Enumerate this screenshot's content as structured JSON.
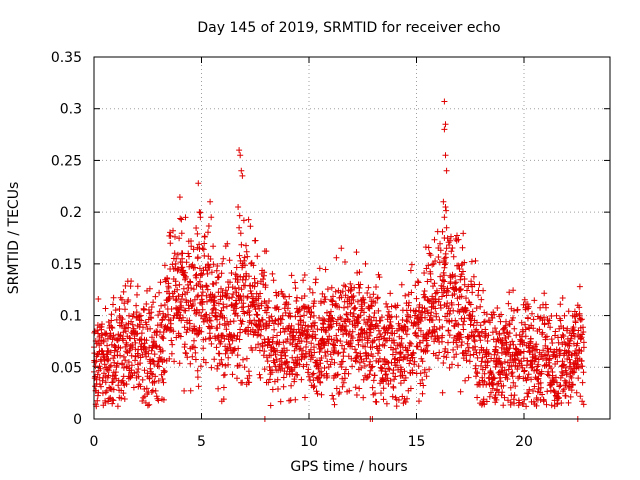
{
  "chart_data": {
    "type": "scatter",
    "title": "Day 145 of 2019, SRMTID for receiver echo",
    "xlabel": "GPS time / hours",
    "ylabel": "SRMTID / TECUs",
    "xlim": [
      0,
      24
    ],
    "ylim": [
      0,
      0.35
    ],
    "xticks": [
      0,
      5,
      10,
      15,
      20
    ],
    "xtick_labels": [
      "0",
      "5",
      "10",
      "15",
      "20"
    ],
    "yticks": [
      0,
      0.05,
      0.1,
      0.15,
      0.2,
      0.25,
      0.3,
      0.35
    ],
    "ytick_labels": [
      "0",
      "0.05",
      "0.1",
      "0.15",
      "0.2",
      "0.25",
      "0.3",
      "0.35"
    ],
    "grid": true,
    "marker": "plus",
    "color": "#e00000",
    "series": [
      {
        "name": "SRMTID",
        "trend": [
          [
            0.0,
            0.06
          ],
          [
            0.5,
            0.058
          ],
          [
            1.0,
            0.055
          ],
          [
            1.5,
            0.068
          ],
          [
            2.0,
            0.075
          ],
          [
            2.5,
            0.07
          ],
          [
            3.0,
            0.062
          ],
          [
            3.5,
            0.11
          ],
          [
            4.0,
            0.12
          ],
          [
            4.5,
            0.105
          ],
          [
            5.0,
            0.12
          ],
          [
            5.5,
            0.11
          ],
          [
            6.0,
            0.09
          ],
          [
            6.5,
            0.11
          ],
          [
            7.0,
            0.115
          ],
          [
            7.5,
            0.105
          ],
          [
            8.0,
            0.09
          ],
          [
            8.5,
            0.08
          ],
          [
            9.0,
            0.075
          ],
          [
            9.5,
            0.075
          ],
          [
            10.0,
            0.07
          ],
          [
            10.5,
            0.075
          ],
          [
            11.0,
            0.08
          ],
          [
            11.5,
            0.085
          ],
          [
            12.0,
            0.09
          ],
          [
            12.5,
            0.085
          ],
          [
            13.0,
            0.075
          ],
          [
            13.5,
            0.07
          ],
          [
            14.0,
            0.065
          ],
          [
            14.5,
            0.075
          ],
          [
            15.0,
            0.08
          ],
          [
            15.5,
            0.1
          ],
          [
            16.0,
            0.11
          ],
          [
            16.5,
            0.125
          ],
          [
            17.0,
            0.11
          ],
          [
            17.5,
            0.09
          ],
          [
            18.0,
            0.065
          ],
          [
            18.5,
            0.055
          ],
          [
            19.0,
            0.06
          ],
          [
            19.5,
            0.06
          ],
          [
            20.0,
            0.065
          ],
          [
            20.5,
            0.06
          ],
          [
            21.0,
            0.055
          ],
          [
            21.5,
            0.05
          ],
          [
            22.0,
            0.06
          ],
          [
            22.5,
            0.07
          ],
          [
            22.8,
            0.065
          ]
        ],
        "spikes": [
          [
            4.85,
            0.228
          ],
          [
            4.9,
            0.2
          ],
          [
            4.95,
            0.195
          ],
          [
            5.05,
            0.165
          ],
          [
            5.4,
            0.21
          ],
          [
            5.45,
            0.195
          ],
          [
            6.75,
            0.26
          ],
          [
            6.8,
            0.255
          ],
          [
            6.85,
            0.24
          ],
          [
            6.9,
            0.235
          ],
          [
            6.7,
            0.205
          ],
          [
            6.75,
            0.185
          ],
          [
            3.5,
            0.177
          ],
          [
            3.55,
            0.17
          ],
          [
            11.5,
            0.165
          ],
          [
            16.3,
            0.307
          ],
          [
            16.35,
            0.285
          ],
          [
            16.3,
            0.28
          ],
          [
            16.35,
            0.255
          ],
          [
            16.4,
            0.24
          ],
          [
            16.25,
            0.21
          ],
          [
            16.35,
            0.205
          ],
          [
            16.3,
            0.195
          ],
          [
            16.4,
            0.185
          ],
          [
            16.3,
            0.175
          ],
          [
            16.4,
            0.165
          ],
          [
            16.3,
            0.155
          ],
          [
            15.6,
            0.16
          ],
          [
            15.8,
            0.15
          ],
          [
            17.0,
            0.145
          ],
          [
            17.1,
            0.14
          ],
          [
            12.35,
            0.142
          ],
          [
            12.3,
            0.13
          ],
          [
            3.8,
            0.15
          ],
          [
            4.1,
            0.155
          ],
          [
            22.6,
            0.128
          ],
          [
            22.5,
            0.11
          ],
          [
            21.8,
            0.117
          ],
          [
            2.0,
            0.12
          ],
          [
            0.2,
            0.116
          ]
        ],
        "zero_points": [
          [
            7.95,
            0.0
          ],
          [
            12.85,
            0.0
          ],
          [
            12.95,
            0.0
          ],
          [
            22.5,
            0.0
          ]
        ]
      }
    ]
  }
}
